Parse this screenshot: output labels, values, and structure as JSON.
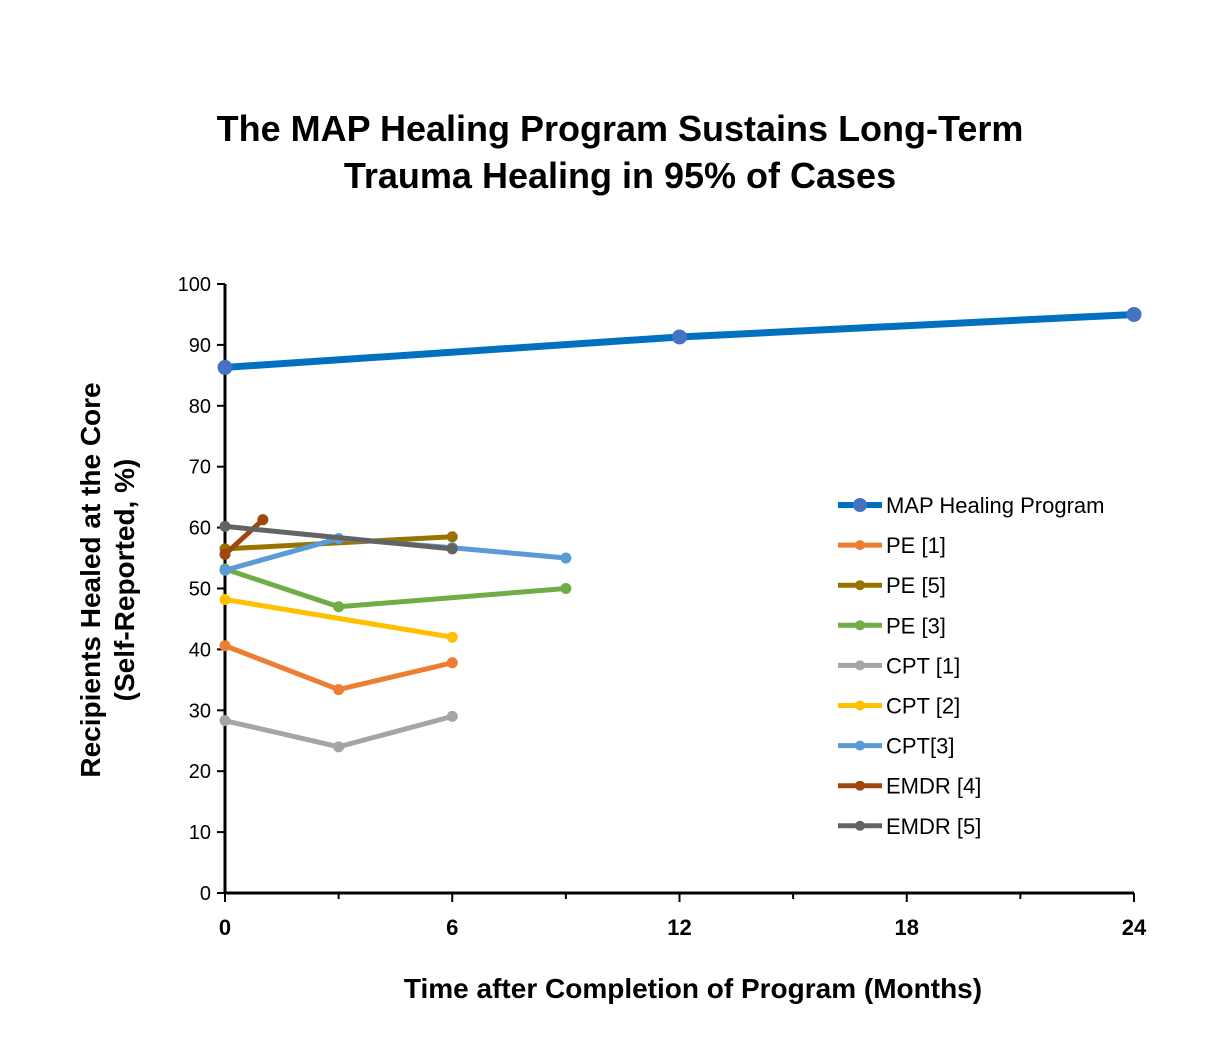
{
  "chart_data": {
    "type": "line",
    "title_lines": [
      "The MAP Healing Program Sustains Long-Term",
      "Trauma Healing in 95% of Cases"
    ],
    "xlabel": "Time after Completion of Program (Months)",
    "ylabel_lines": [
      "Recipients Healed at the Core",
      "(Self-Reported, %)"
    ],
    "xlim": [
      0,
      24
    ],
    "ylim": [
      0,
      100
    ],
    "xticks": [
      0,
      6,
      12,
      18,
      24
    ],
    "xminor": [
      3,
      9,
      15,
      21
    ],
    "yticks": [
      0,
      10,
      20,
      30,
      40,
      50,
      60,
      70,
      80,
      90,
      100
    ],
    "legend_position": "right",
    "grid": false,
    "series": [
      {
        "name": "MAP Healing Program",
        "color": "#0070C0",
        "marker": "#4472C4",
        "heavy": true,
        "x": [
          0,
          12,
          24
        ],
        "y": [
          86.3,
          91.3,
          95
        ]
      },
      {
        "name": "PE [1]",
        "color": "#ED7D31",
        "x": [
          0,
          3,
          6
        ],
        "y": [
          40.6,
          33.4,
          37.8
        ]
      },
      {
        "name": "PE [5]",
        "color": "#997300",
        "x": [
          0,
          6
        ],
        "y": [
          56.5,
          58.5
        ]
      },
      {
        "name": "PE [3]",
        "color": "#70AD47",
        "x": [
          0,
          3,
          9
        ],
        "y": [
          53.2,
          47,
          50
        ]
      },
      {
        "name": "CPT [1]",
        "color": "#A5A5A5",
        "x": [
          0,
          3,
          6
        ],
        "y": [
          28.3,
          24,
          29
        ]
      },
      {
        "name": "CPT [2]",
        "color": "#FFC000",
        "x": [
          0,
          6
        ],
        "y": [
          48.2,
          42
        ]
      },
      {
        "name": "CPT[3]",
        "color": "#5B9BD5",
        "x": [
          0,
          3,
          6,
          9
        ],
        "y": [
          53,
          58.2,
          56.7,
          55
        ]
      },
      {
        "name": "EMDR [4]",
        "color": "#9E480E",
        "x": [
          0,
          1
        ],
        "y": [
          55.6,
          61.3
        ]
      },
      {
        "name": "EMDR [5]",
        "color": "#636363",
        "x": [
          0,
          6
        ],
        "y": [
          60.2,
          56.5
        ]
      }
    ]
  }
}
